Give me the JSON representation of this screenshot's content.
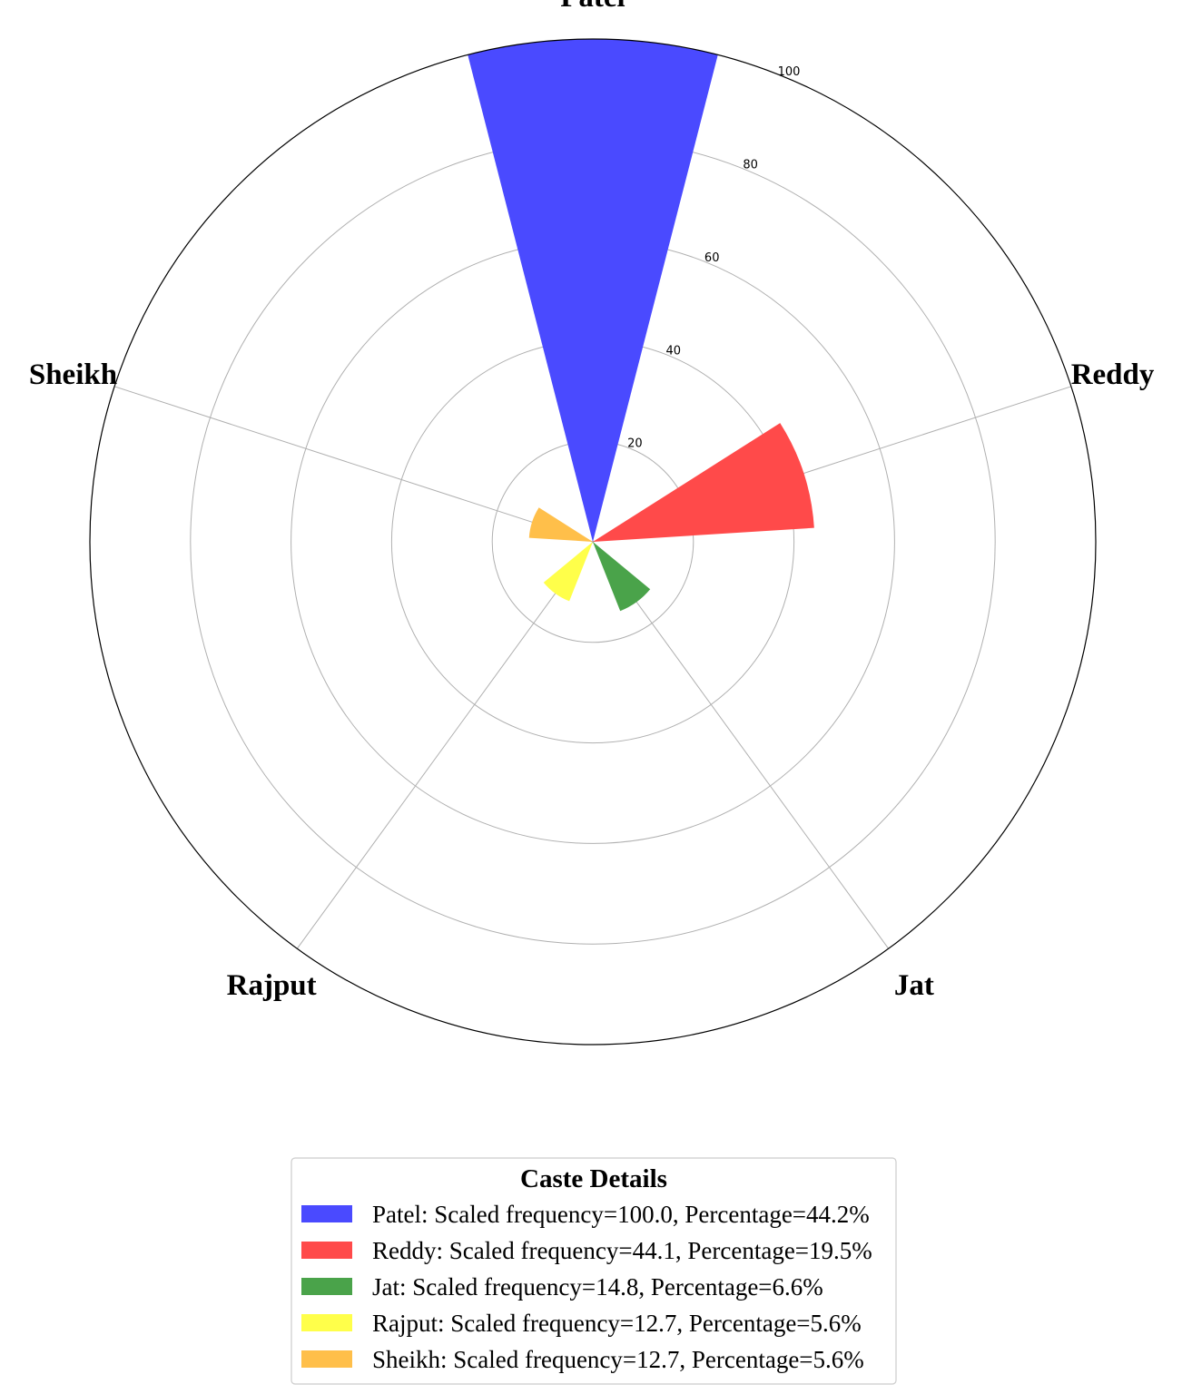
{
  "chart_data": {
    "type": "bar",
    "subtype": "polar",
    "categories": [
      "Patel",
      "Reddy",
      "Jat",
      "Rajput",
      "Sheikh"
    ],
    "values": [
      100.0,
      44.1,
      14.8,
      12.7,
      12.7
    ],
    "colors": [
      "#4a4aff",
      "#ff4a4a",
      "#4aa34a",
      "#ffff4a",
      "#ffbf4a"
    ],
    "rlim": [
      0,
      100
    ],
    "rticks": [
      20,
      40,
      60,
      80,
      100
    ],
    "grid": true,
    "legend": {
      "title": "Caste Details",
      "placement": "bottom-center",
      "entries": [
        "Patel: Scaled frequency=100.0, Percentage=44.2%",
        "Reddy: Scaled frequency=44.1, Percentage=19.5%",
        "Jat: Scaled frequency=14.8, Percentage=6.6%",
        "Rajput: Scaled frequency=12.7, Percentage=5.6%",
        "Sheikh: Scaled frequency=12.7, Percentage=5.6%"
      ]
    }
  }
}
